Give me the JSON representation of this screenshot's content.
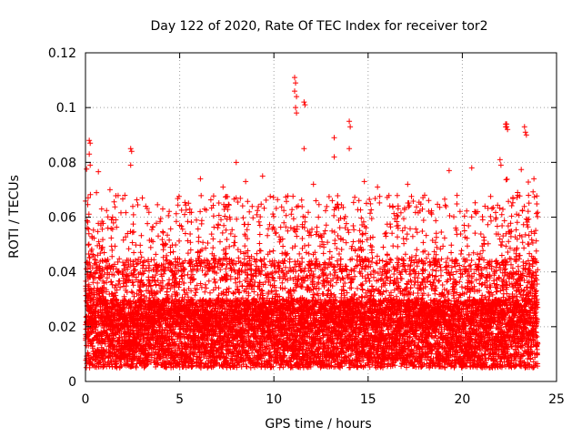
{
  "chart_data": {
    "type": "scatter",
    "title": "Day 122 of 2020, Rate Of TEC Index for receiver tor2",
    "xlabel": "GPS time / hours",
    "ylabel": "ROTI / TECUs",
    "xlim": [
      0,
      25
    ],
    "ylim": [
      0,
      0.12
    ],
    "xticks": [
      0,
      5,
      10,
      15,
      20,
      25
    ],
    "xtick_labels": [
      "0",
      "5",
      "10",
      "15",
      "20",
      "25"
    ],
    "yticks": [
      0,
      0.02,
      0.04,
      0.06,
      0.08,
      0.1,
      0.12
    ],
    "ytick_labels": [
      "0",
      "0.02",
      "0.04",
      "0.06",
      "0.08",
      "0.1",
      "0.12"
    ],
    "grid": true,
    "marker": "+",
    "series": [
      {
        "name": "ROTI",
        "color": "#ff0000",
        "x_range": [
          0,
          24
        ],
        "density_per_hour": 400,
        "baseline_range": [
          0.005,
          0.03
        ],
        "notable_points": [
          {
            "x": 0.2,
            "y": 0.088
          },
          {
            "x": 0.25,
            "y": 0.087
          },
          {
            "x": 0.2,
            "y": 0.083
          },
          {
            "x": 0.25,
            "y": 0.079
          },
          {
            "x": 2.4,
            "y": 0.085
          },
          {
            "x": 2.45,
            "y": 0.084
          },
          {
            "x": 2.4,
            "y": 0.079
          },
          {
            "x": 8.0,
            "y": 0.08
          },
          {
            "x": 11.1,
            "y": 0.111
          },
          {
            "x": 11.15,
            "y": 0.109
          },
          {
            "x": 11.1,
            "y": 0.106
          },
          {
            "x": 11.2,
            "y": 0.104
          },
          {
            "x": 11.15,
            "y": 0.1
          },
          {
            "x": 11.2,
            "y": 0.098
          },
          {
            "x": 11.6,
            "y": 0.102
          },
          {
            "x": 11.65,
            "y": 0.101
          },
          {
            "x": 11.6,
            "y": 0.085
          },
          {
            "x": 13.2,
            "y": 0.089
          },
          {
            "x": 13.2,
            "y": 0.082
          },
          {
            "x": 14.0,
            "y": 0.095
          },
          {
            "x": 14.05,
            "y": 0.093
          },
          {
            "x": 14.0,
            "y": 0.085
          },
          {
            "x": 22.3,
            "y": 0.094
          },
          {
            "x": 22.35,
            "y": 0.093
          },
          {
            "x": 22.4,
            "y": 0.092
          },
          {
            "x": 22.3,
            "y": 0.093
          },
          {
            "x": 22.35,
            "y": 0.094
          },
          {
            "x": 23.3,
            "y": 0.093
          },
          {
            "x": 23.35,
            "y": 0.091
          },
          {
            "x": 23.4,
            "y": 0.09
          },
          {
            "x": 22.0,
            "y": 0.081
          },
          {
            "x": 22.05,
            "y": 0.079
          },
          {
            "x": 19.3,
            "y": 0.077
          },
          {
            "x": 20.5,
            "y": 0.078
          },
          {
            "x": 6.1,
            "y": 0.074
          },
          {
            "x": 7.3,
            "y": 0.071
          },
          {
            "x": 8.5,
            "y": 0.073
          },
          {
            "x": 9.4,
            "y": 0.075
          },
          {
            "x": 12.1,
            "y": 0.072
          },
          {
            "x": 14.8,
            "y": 0.073
          },
          {
            "x": 15.5,
            "y": 0.071
          },
          {
            "x": 17.1,
            "y": 0.072
          },
          {
            "x": 1.3,
            "y": 0.07
          },
          {
            "x": 3.2,
            "y": 0.064
          },
          {
            "x": 4.1,
            "y": 0.063
          },
          {
            "x": 16.3,
            "y": 0.064
          },
          {
            "x": 18.0,
            "y": 0.068
          },
          {
            "x": 21.2,
            "y": 0.064
          },
          {
            "x": 23.8,
            "y": 0.074
          },
          {
            "x": 0.1,
            "y": 0.056
          },
          {
            "x": 5.0,
            "y": 0.057
          }
        ]
      }
    ]
  }
}
